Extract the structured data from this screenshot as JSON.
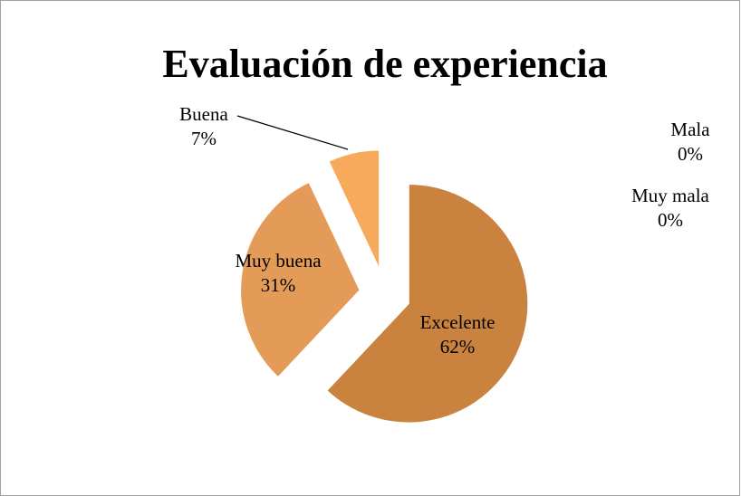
{
  "chart_data": {
    "type": "pie",
    "title": "Evaluación de experiencia",
    "categories": [
      "Excelente",
      "Muy buena",
      "Buena",
      "Mala",
      "Muy mala"
    ],
    "values": [
      62,
      31,
      7,
      0,
      0
    ],
    "value_labels": [
      "62%",
      "31%",
      "7%",
      "0%",
      "0%"
    ],
    "colors": [
      "#c9833f",
      "#e39b57",
      "#f7aa5c",
      "#f2c08a",
      "#d9a06a"
    ]
  }
}
